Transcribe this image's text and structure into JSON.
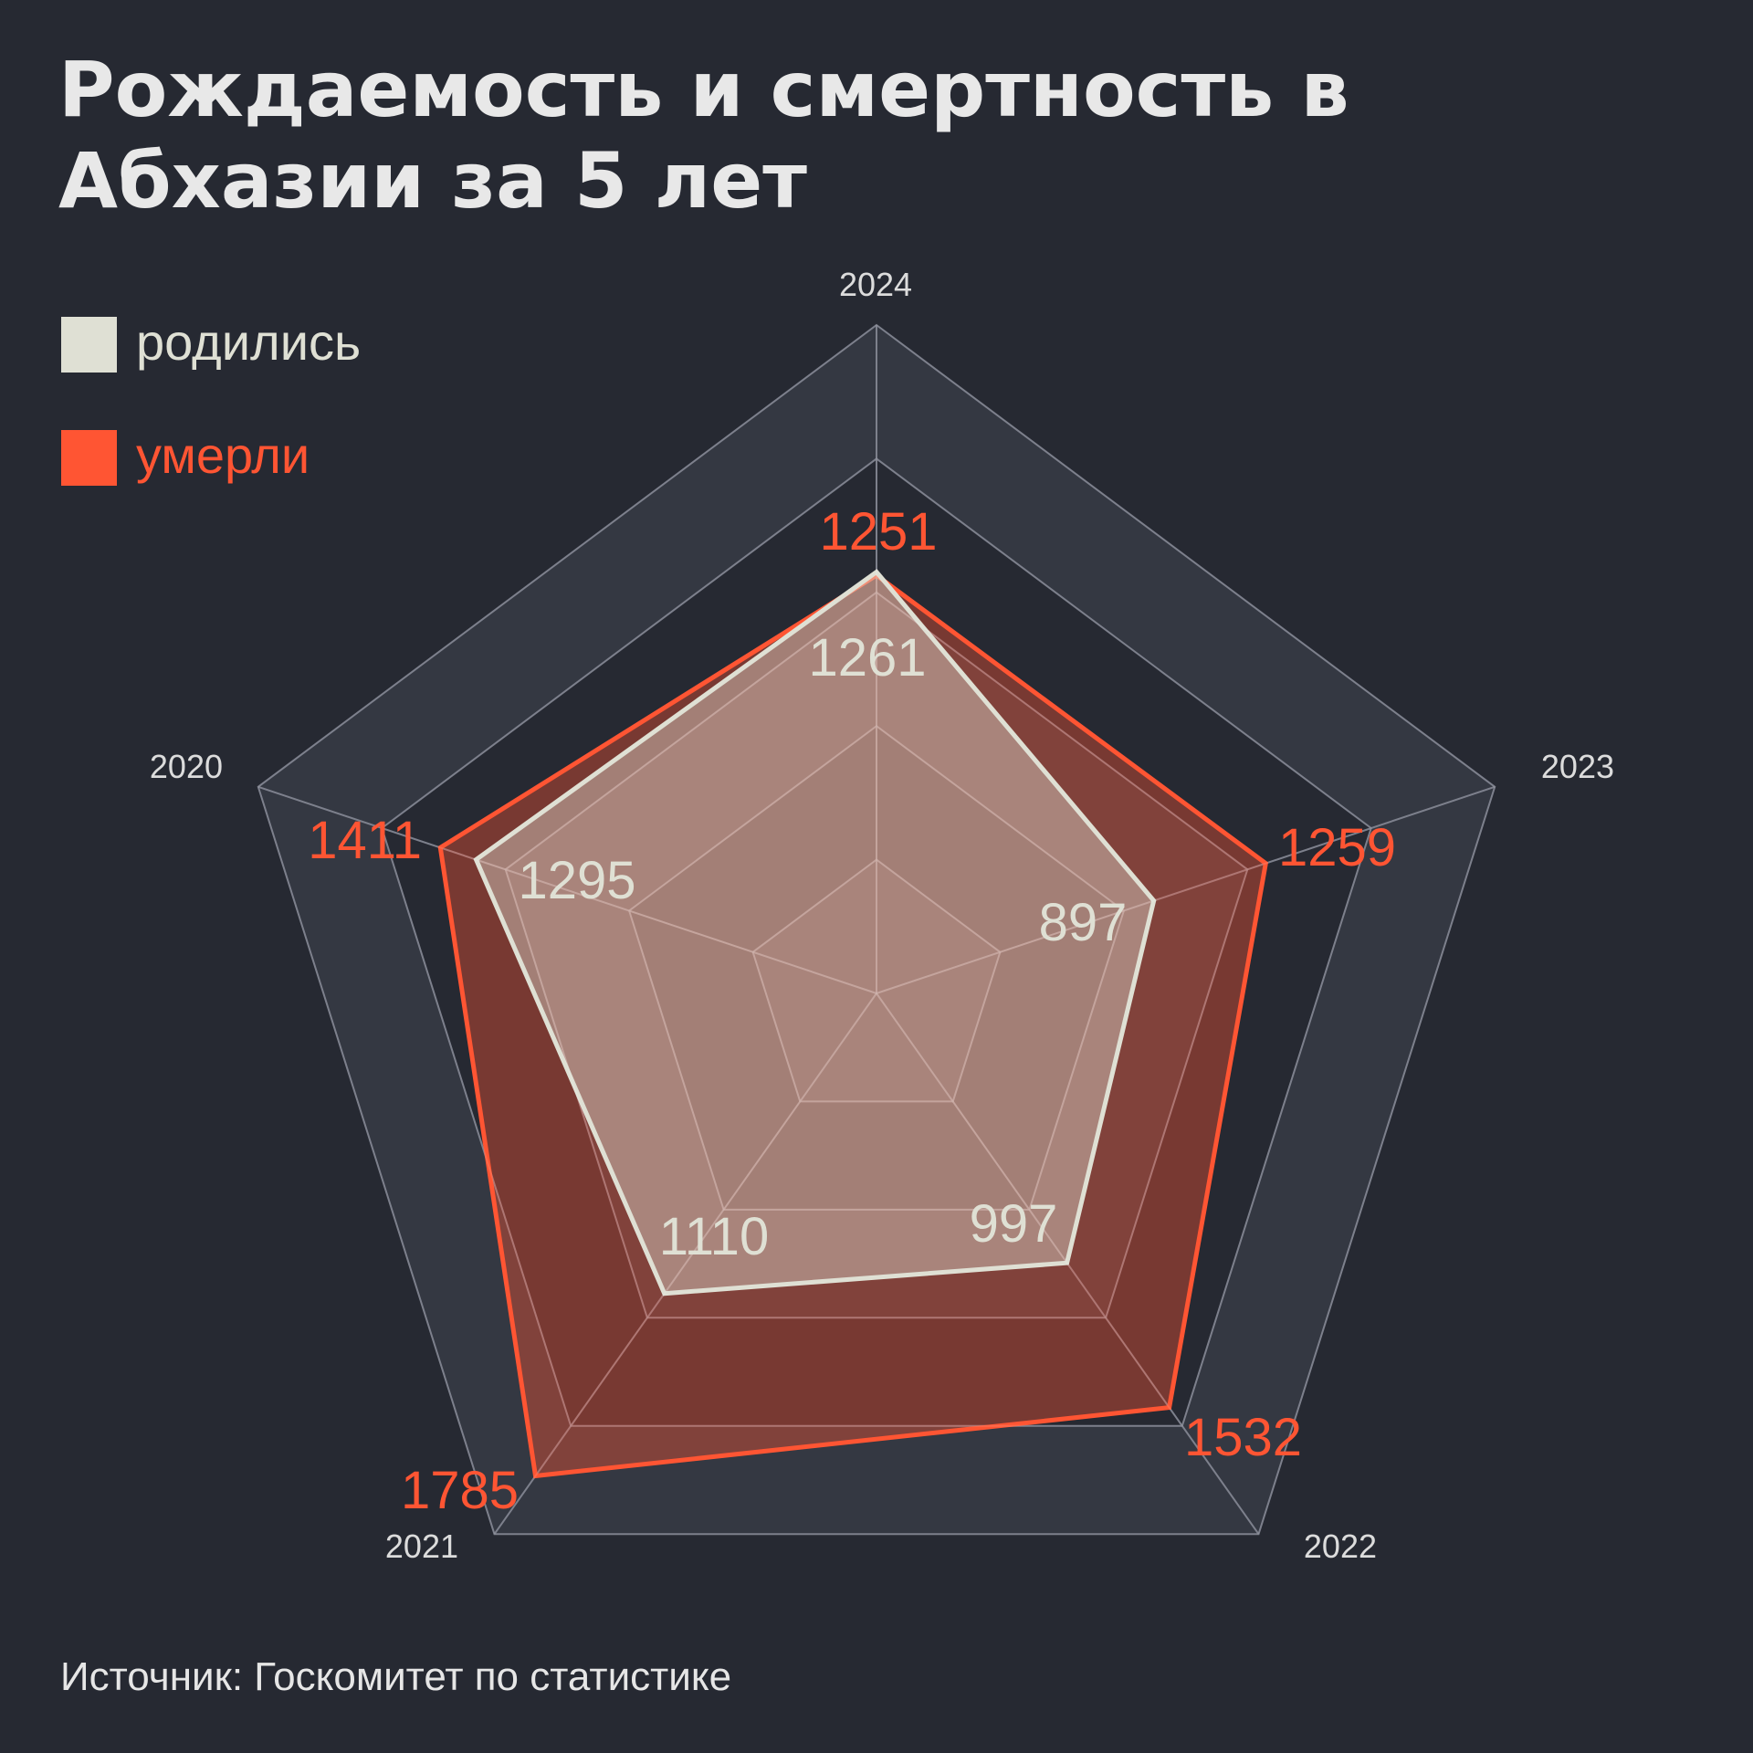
{
  "title": "Рождаемость и смертность в Абхазии за 5 лет",
  "legend": [
    {
      "label": "родились",
      "color": "#dfe0d4"
    },
    {
      "label": "умерли",
      "color": "#ff5533"
    }
  ],
  "source": "Источник: Госкомитет по статистике",
  "colors": {
    "background": "#262932",
    "grid": "#6b6f7d",
    "band_light": "#343842",
    "born": "#dfe0d4",
    "died": "#ff5533"
  },
  "chart_data": {
    "type": "radar",
    "title": "Рождаемость и смертность в Абхазии за 5 лет",
    "categories": [
      "2024",
      "2023",
      "2022",
      "2021",
      "2020"
    ],
    "series": [
      {
        "name": "родились",
        "values": [
          1261,
          897,
          997,
          1110,
          1295
        ]
      },
      {
        "name": "умерли",
        "values": [
          1251,
          1259,
          1532,
          1785,
          1411
        ]
      }
    ],
    "rlim": [
      0,
      2000
    ],
    "grid_levels": [
      400,
      800,
      1200,
      1600,
      2000
    ],
    "legend_position": "top-left"
  }
}
